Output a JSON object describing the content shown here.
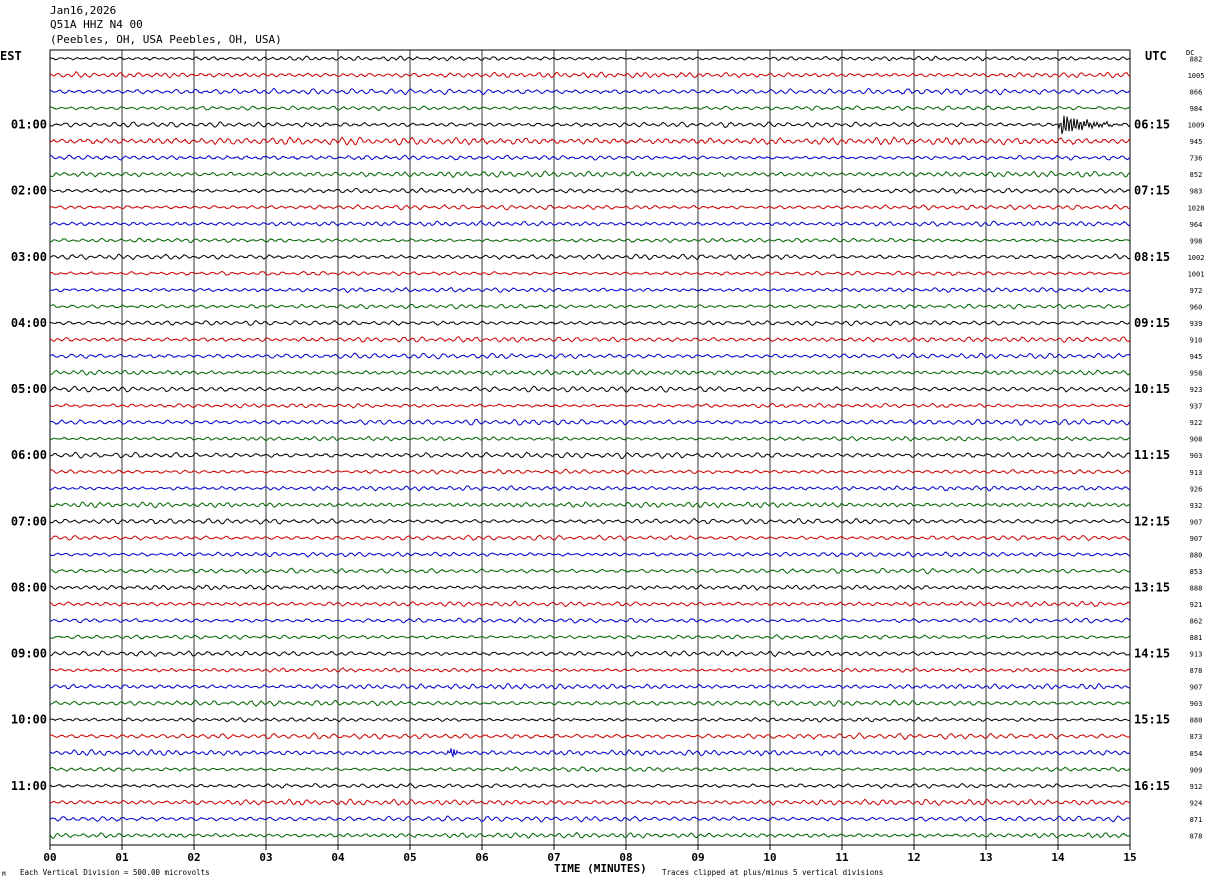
{
  "header": {
    "date": "Jan16,2026",
    "channel": "Q51A HHZ N4 00",
    "location": "(Peebles, OH, USA Peebles, OH, USA)"
  },
  "left_timezone": "EST",
  "right_timezone": "UTC",
  "dc_header": "DC",
  "footer": {
    "scale_note": "Each Vertical Division =   500.00 microvolts",
    "clip_note": "Traces clipped at plus/minus 5 vertical divisions",
    "corner_mark": "M"
  },
  "chart_data": {
    "type": "line",
    "title": "",
    "xlabel": "TIME (MINUTES)",
    "ylabel": "",
    "xlim": [
      0,
      15
    ],
    "x_ticks": [
      "00",
      "01",
      "02",
      "03",
      "04",
      "05",
      "06",
      "07",
      "08",
      "09",
      "10",
      "11",
      "12",
      "13",
      "14",
      "15"
    ],
    "trace_count": 48,
    "trace_colors": [
      "#000000",
      "#cc0000",
      "#0000cc",
      "#006400"
    ],
    "left_hour_labels": [
      "01:00",
      "02:00",
      "03:00",
      "04:00",
      "05:00",
      "06:00",
      "07:00",
      "08:00",
      "09:00",
      "10:00",
      "11:00"
    ],
    "right_hour_labels": [
      "06:15",
      "07:15",
      "08:15",
      "09:15",
      "10:15",
      "11:15",
      "12:15",
      "13:15",
      "14:15",
      "15:15",
      "16:15"
    ],
    "dc_offsets": [
      "882",
      "1005",
      "866",
      "984",
      "1009",
      "945",
      "736",
      "852",
      "983",
      "1028",
      "964",
      "998",
      "1002",
      "1001",
      "972",
      "960",
      "939",
      "910",
      "945",
      "958",
      "923",
      "937",
      "922",
      "908",
      "903",
      "913",
      "926",
      "932",
      "907",
      "907",
      "880",
      "853",
      "888",
      "921",
      "862",
      "881",
      "913",
      "878",
      "907",
      "903",
      "880",
      "873",
      "854",
      "909",
      "912",
      "924",
      "871",
      "878"
    ],
    "events": [
      {
        "trace": 4,
        "minute": 14.05,
        "description": "earthquake signal"
      },
      {
        "trace": 42,
        "minute": 5.6,
        "description": "local spike"
      }
    ]
  }
}
